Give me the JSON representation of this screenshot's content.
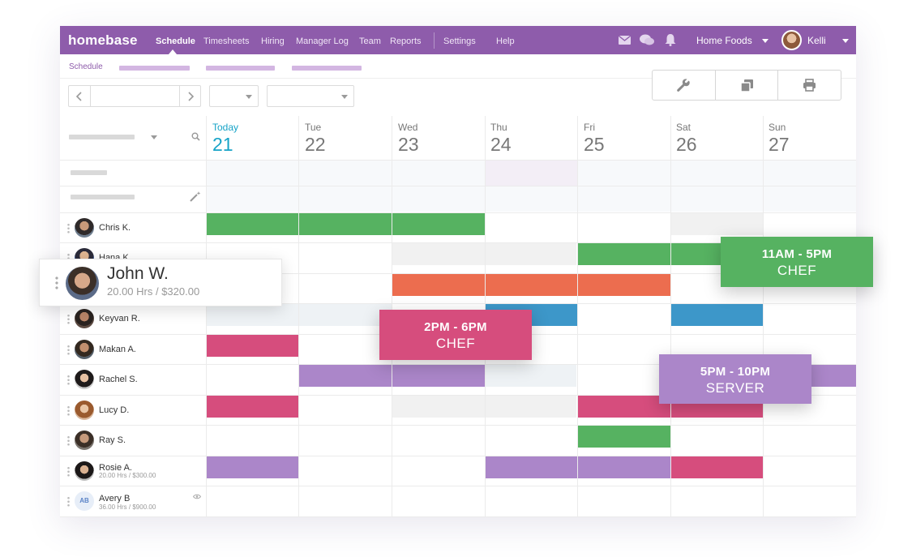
{
  "colors": {
    "brand": "#8e5cab",
    "today": "#16a3c7",
    "green": "#56b261",
    "orange": "#ec6d4f",
    "blue": "#3d97c9",
    "pink": "#d64d7d",
    "purple": "#ab86c9"
  },
  "topnav": {
    "logo": "homebase",
    "items": [
      {
        "label": "Schedule",
        "active": true
      },
      {
        "label": "Timesheets"
      },
      {
        "label": "Hiring"
      },
      {
        "label": "Manager Log"
      },
      {
        "label": "Team"
      },
      {
        "label": "Reports"
      },
      {
        "label": "Settings"
      },
      {
        "label": "Help"
      }
    ],
    "icons": [
      "mail-icon",
      "chat-icon",
      "bell-icon"
    ],
    "company": "Home Foods",
    "user": "Kelli"
  },
  "subnav": {
    "label": "Schedule"
  },
  "toolbar": {
    "tools": [
      "wrench-icon",
      "copy-icon",
      "print-icon"
    ]
  },
  "days": [
    {
      "name": "Today",
      "num": "21",
      "today": true
    },
    {
      "name": "Tue",
      "num": "22"
    },
    {
      "name": "Wed",
      "num": "23"
    },
    {
      "name": "Thu",
      "num": "24"
    },
    {
      "name": "Fri",
      "num": "25"
    },
    {
      "name": "Sat",
      "num": "26"
    },
    {
      "name": "Sun",
      "num": "27"
    }
  ],
  "employees": [
    {
      "name": "Chris K.",
      "sub": ""
    },
    {
      "name": "Hana K.",
      "sub": ""
    },
    {
      "name": "John W.",
      "sub": "20.00 Hrs / $320.00"
    },
    {
      "name": "Keyvan R.",
      "sub": ""
    },
    {
      "name": "Makan A.",
      "sub": ""
    },
    {
      "name": "Rachel S.",
      "sub": ""
    },
    {
      "name": "Lucy D.",
      "sub": ""
    },
    {
      "name": "Ray S.",
      "sub": ""
    },
    {
      "name": "Rosie A.",
      "sub": "20.00 Hrs / $300.00"
    },
    {
      "name": "Avery B",
      "sub": "36.00 Hrs / $900.00",
      "initials": "AB"
    }
  ],
  "floating_shifts": [
    {
      "time": "11AM - 5PM",
      "role": "CHEF"
    },
    {
      "time": "2PM - 6PM",
      "role": "CHEF"
    },
    {
      "time": "5PM - 10PM",
      "role": "SERVER"
    }
  ]
}
